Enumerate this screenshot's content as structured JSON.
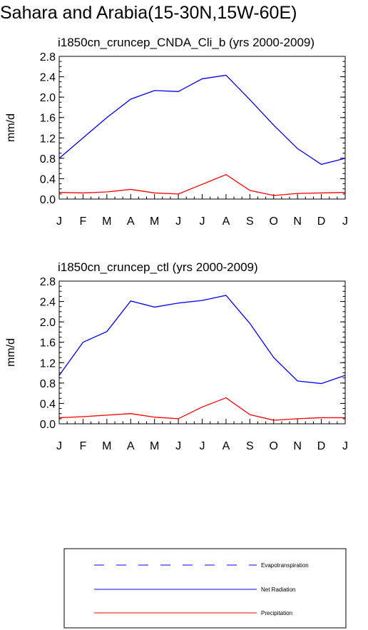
{
  "figure": {
    "title": "Sahara and Arabia(15-30N,15W-60E)"
  },
  "chart_data": [
    {
      "type": "line",
      "title": "i1850cn_cruncep_CNDA_Cli_b (yrs 2000-2009)",
      "xlabel": "",
      "ylabel": "mm/d",
      "categories": [
        "J",
        "F",
        "M",
        "A",
        "M",
        "J",
        "J",
        "A",
        "S",
        "O",
        "N",
        "D",
        "J"
      ],
      "ylim": [
        0,
        2.8
      ],
      "yticks": [
        "0.0",
        "0.4",
        "0.8",
        "1.2",
        "1.6",
        "2.0",
        "2.4",
        "2.8"
      ],
      "grid": false,
      "series": [
        {
          "name": "Net Radiation",
          "color": "#0000ff",
          "values": [
            0.8,
            1.2,
            1.6,
            1.96,
            2.13,
            2.11,
            2.36,
            2.43,
            1.95,
            1.45,
            0.99,
            0.68,
            0.8
          ]
        },
        {
          "name": "Precipitation",
          "color": "#ff0000",
          "values": [
            0.13,
            0.12,
            0.14,
            0.19,
            0.12,
            0.1,
            0.29,
            0.48,
            0.17,
            0.07,
            0.11,
            0.12,
            0.13
          ]
        }
      ]
    },
    {
      "type": "line",
      "title": "i1850cn_cruncep_ctl (yrs 2000-2009)",
      "xlabel": "",
      "ylabel": "mm/d",
      "categories": [
        "J",
        "F",
        "M",
        "A",
        "M",
        "J",
        "J",
        "A",
        "S",
        "O",
        "N",
        "D",
        "J"
      ],
      "ylim": [
        0,
        2.8
      ],
      "yticks": [
        "0.0",
        "0.4",
        "0.8",
        "1.2",
        "1.6",
        "2.0",
        "2.4",
        "2.8"
      ],
      "grid": false,
      "series": [
        {
          "name": "Net Radiation",
          "color": "#0000ff",
          "values": [
            0.95,
            1.6,
            1.81,
            2.41,
            2.29,
            2.37,
            2.42,
            2.52,
            1.97,
            1.3,
            0.84,
            0.79,
            0.95
          ]
        },
        {
          "name": "Precipitation",
          "color": "#ff0000",
          "values": [
            0.12,
            0.14,
            0.17,
            0.2,
            0.13,
            0.1,
            0.33,
            0.51,
            0.18,
            0.07,
            0.1,
            0.12,
            0.12
          ]
        }
      ]
    }
  ],
  "legend": {
    "items": [
      {
        "label": "Evapotranspiration",
        "style": "dashed",
        "color": "#0000ff"
      },
      {
        "label": "Net Radiation",
        "style": "solid",
        "color": "#0000ff"
      },
      {
        "label": "Precipitation",
        "style": "solid",
        "color": "#ff0000"
      }
    ]
  }
}
